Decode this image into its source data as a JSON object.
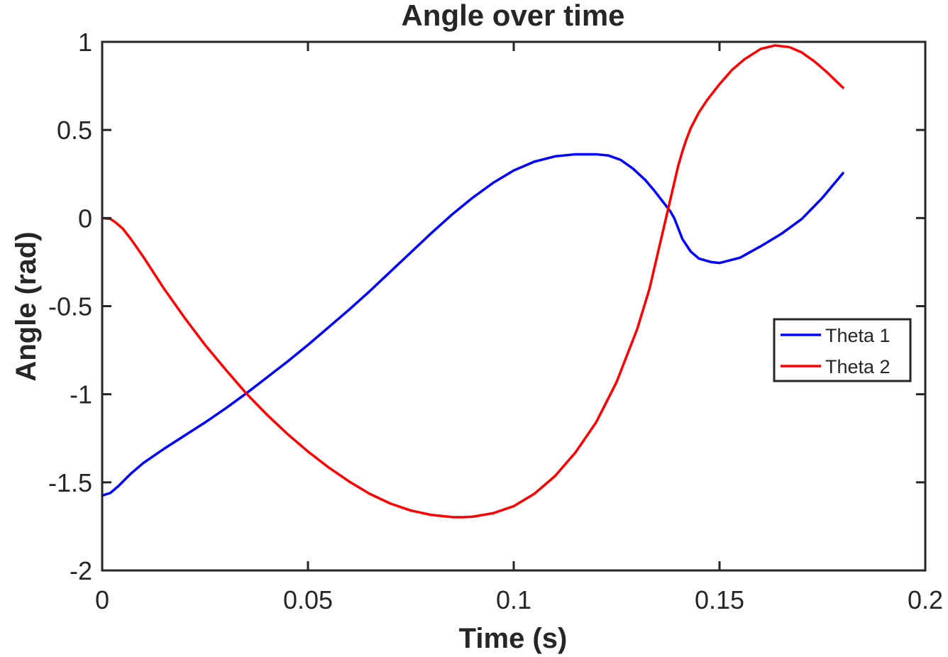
{
  "chart_data": {
    "type": "line",
    "title": "Angle over time",
    "xlabel": "Time (s)",
    "ylabel": "Angle (rad)",
    "xlim": [
      0,
      0.2
    ],
    "ylim": [
      -2,
      1
    ],
    "xticks": [
      0,
      0.05,
      0.1,
      0.15,
      0.2
    ],
    "xtick_labels": [
      "0",
      "0.05",
      "0.1",
      "0.15",
      "0.2"
    ],
    "yticks": [
      -2,
      -1.5,
      -1,
      -0.5,
      0,
      0.5,
      1
    ],
    "ytick_labels": [
      "-2",
      "-1.5",
      "-1",
      "-0.5",
      "0",
      "0.5",
      "1"
    ],
    "grid": false,
    "legend_position": "east",
    "series": [
      {
        "name": "Theta 1",
        "color": "#0000ff",
        "x": [
          0,
          0.002,
          0.004,
          0.007,
          0.01,
          0.015,
          0.02,
          0.025,
          0.03,
          0.035,
          0.04,
          0.045,
          0.05,
          0.055,
          0.06,
          0.065,
          0.07,
          0.075,
          0.08,
          0.085,
          0.09,
          0.095,
          0.1,
          0.105,
          0.11,
          0.115,
          0.12,
          0.123,
          0.126,
          0.129,
          0.132,
          0.134,
          0.136,
          0.137,
          0.138,
          0.139,
          0.14,
          0.141,
          0.143,
          0.145,
          0.148,
          0.15,
          0.155,
          0.16,
          0.165,
          0.17,
          0.175,
          0.18
        ],
        "y": [
          -1.575,
          -1.56,
          -1.52,
          -1.45,
          -1.39,
          -1.31,
          -1.235,
          -1.16,
          -1.08,
          -0.995,
          -0.905,
          -0.815,
          -0.72,
          -0.62,
          -0.52,
          -0.415,
          -0.305,
          -0.195,
          -0.085,
          0.02,
          0.115,
          0.2,
          0.27,
          0.32,
          0.35,
          0.362,
          0.362,
          0.355,
          0.33,
          0.28,
          0.215,
          0.16,
          0.1,
          0.07,
          0.04,
          0.0,
          -0.06,
          -0.12,
          -0.19,
          -0.23,
          -0.25,
          -0.255,
          -0.225,
          -0.16,
          -0.09,
          -0.005,
          0.115,
          0.255
        ]
      },
      {
        "name": "Theta 2",
        "color": "#ff0000",
        "x": [
          0,
          0.002,
          0.003,
          0.005,
          0.007,
          0.01,
          0.015,
          0.02,
          0.025,
          0.03,
          0.035,
          0.04,
          0.045,
          0.05,
          0.055,
          0.06,
          0.065,
          0.07,
          0.075,
          0.08,
          0.085,
          0.0875,
          0.09,
          0.095,
          0.1,
          0.105,
          0.11,
          0.115,
          0.12,
          0.125,
          0.13,
          0.133,
          0.135,
          0.137,
          0.138,
          0.139,
          0.14,
          0.141,
          0.142,
          0.143,
          0.145,
          0.147,
          0.15,
          0.153,
          0.156,
          0.16,
          0.1635,
          0.167,
          0.17,
          0.173,
          0.176,
          0.18
        ],
        "y": [
          0,
          -0.005,
          -0.02,
          -0.06,
          -0.12,
          -0.22,
          -0.4,
          -0.565,
          -0.72,
          -0.86,
          -0.995,
          -1.115,
          -1.225,
          -1.325,
          -1.415,
          -1.495,
          -1.565,
          -1.62,
          -1.66,
          -1.685,
          -1.697,
          -1.698,
          -1.695,
          -1.675,
          -1.635,
          -1.565,
          -1.465,
          -1.33,
          -1.16,
          -0.93,
          -0.63,
          -0.4,
          -0.2,
          0.0,
          0.1,
          0.2,
          0.3,
          0.38,
          0.45,
          0.51,
          0.6,
          0.67,
          0.76,
          0.84,
          0.9,
          0.96,
          0.98,
          0.97,
          0.94,
          0.89,
          0.83,
          0.74
        ]
      }
    ]
  }
}
